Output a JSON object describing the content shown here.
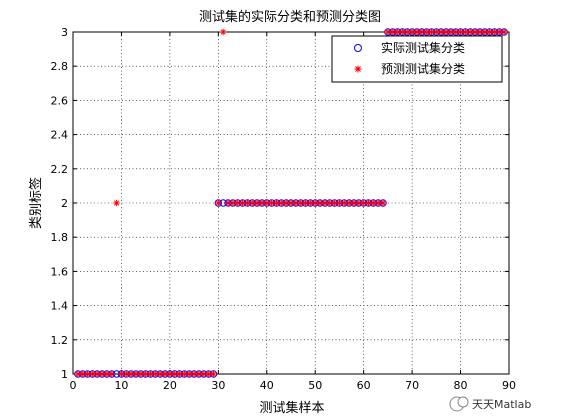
{
  "window": {
    "background": "#ffffff"
  },
  "chart_data": {
    "type": "scatter",
    "title": "测试集的实际分类和预测分类图",
    "xlabel": "测试集样本",
    "ylabel": "类别标签",
    "xlim": [
      0,
      90
    ],
    "ylim": [
      1,
      3
    ],
    "xticks": [
      "0",
      "10",
      "20",
      "30",
      "40",
      "50",
      "60",
      "70",
      "80",
      "90"
    ],
    "yticks": [
      "1",
      "1.2",
      "1.4",
      "1.6",
      "1.8",
      "2",
      "2.2",
      "2.4",
      "2.6",
      "2.8",
      "3"
    ],
    "grid": true,
    "legend_position": "top-right",
    "series": [
      {
        "name": "实际测试集分类",
        "marker": "circle",
        "color": "#0000ff",
        "x": [
          1,
          2,
          3,
          4,
          5,
          6,
          7,
          8,
          9,
          10,
          11,
          12,
          13,
          14,
          15,
          16,
          17,
          18,
          19,
          20,
          21,
          22,
          23,
          24,
          25,
          26,
          27,
          28,
          29,
          30,
          31,
          32,
          33,
          34,
          35,
          36,
          37,
          38,
          39,
          40,
          41,
          42,
          43,
          44,
          45,
          46,
          47,
          48,
          49,
          50,
          51,
          52,
          53,
          54,
          55,
          56,
          57,
          58,
          59,
          60,
          61,
          62,
          63,
          64,
          65,
          66,
          67,
          68,
          69,
          70,
          71,
          72,
          73,
          74,
          75,
          76,
          77,
          78,
          79,
          80,
          81,
          82,
          83,
          84,
          85,
          86,
          87,
          88,
          89
        ],
        "y": [
          1,
          1,
          1,
          1,
          1,
          1,
          1,
          1,
          1,
          1,
          1,
          1,
          1,
          1,
          1,
          1,
          1,
          1,
          1,
          1,
          1,
          1,
          1,
          1,
          1,
          1,
          1,
          1,
          1,
          2,
          2,
          2,
          2,
          2,
          2,
          2,
          2,
          2,
          2,
          2,
          2,
          2,
          2,
          2,
          2,
          2,
          2,
          2,
          2,
          2,
          2,
          2,
          2,
          2,
          2,
          2,
          2,
          2,
          2,
          2,
          2,
          2,
          2,
          2,
          3,
          3,
          3,
          3,
          3,
          3,
          3,
          3,
          3,
          3,
          3,
          3,
          3,
          3,
          3,
          3,
          3,
          3,
          3,
          3,
          3,
          3,
          3,
          3,
          3
        ]
      },
      {
        "name": "预测测试集分类",
        "marker": "star",
        "color": "#ff0000",
        "x": [
          1,
          2,
          3,
          4,
          5,
          6,
          7,
          8,
          9,
          10,
          11,
          12,
          13,
          14,
          15,
          16,
          17,
          18,
          19,
          20,
          21,
          22,
          23,
          24,
          25,
          26,
          27,
          28,
          29,
          30,
          31,
          32,
          33,
          34,
          35,
          36,
          37,
          38,
          39,
          40,
          41,
          42,
          43,
          44,
          45,
          46,
          47,
          48,
          49,
          50,
          51,
          52,
          53,
          54,
          55,
          56,
          57,
          58,
          59,
          60,
          61,
          62,
          63,
          64,
          65,
          66,
          67,
          68,
          69,
          70,
          71,
          72,
          73,
          74,
          75,
          76,
          77,
          78,
          79,
          80,
          81,
          82,
          83,
          84,
          85,
          86,
          87,
          88,
          89
        ],
        "y": [
          1,
          1,
          1,
          1,
          1,
          1,
          1,
          1,
          2,
          1,
          1,
          1,
          1,
          1,
          1,
          1,
          1,
          1,
          1,
          1,
          1,
          1,
          1,
          1,
          1,
          1,
          1,
          1,
          1,
          2,
          3,
          2,
          2,
          2,
          2,
          2,
          2,
          2,
          2,
          2,
          2,
          2,
          2,
          2,
          2,
          2,
          2,
          2,
          2,
          2,
          2,
          2,
          2,
          2,
          2,
          2,
          2,
          2,
          2,
          2,
          2,
          2,
          2,
          2,
          3,
          3,
          3,
          3,
          3,
          3,
          3,
          3,
          3,
          3,
          3,
          3,
          3,
          3,
          3,
          3,
          3,
          3,
          3,
          3,
          3,
          3,
          3,
          3,
          3
        ]
      }
    ]
  },
  "watermark": {
    "text": "天天Matlab"
  }
}
